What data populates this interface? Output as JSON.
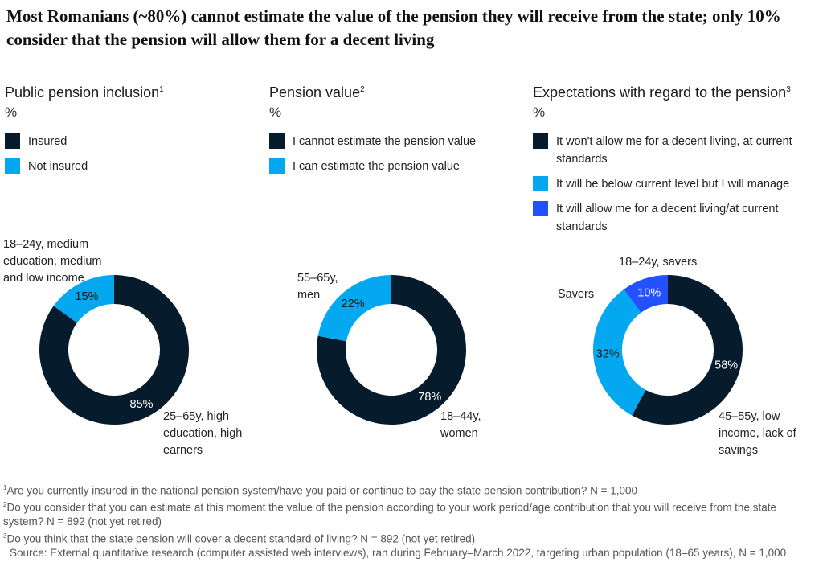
{
  "title": "Most Romanians (~80%) cannot estimate the value of the pension they will receive from the state; only 10% consider that the pension will allow them for a decent living",
  "colors": {
    "dark": "#061c2c",
    "cyan": "#04a8f0",
    "blue": "#2451ff"
  },
  "panels": [
    {
      "heading": "Public pension inclusion",
      "sup": "1",
      "unit": "%",
      "legend": [
        {
          "label": "Insured",
          "color": "#061c2c"
        },
        {
          "label": "Not insured",
          "color": "#04a8f0"
        }
      ],
      "annotations": [
        "18–24y, medium education, medium and low income",
        "25–65y, high education, high earners"
      ]
    },
    {
      "heading": "Pension value",
      "sup": "2",
      "unit": "%",
      "legend": [
        {
          "label": "I cannot estimate the pension value",
          "color": "#061c2c"
        },
        {
          "label": "I can estimate the pension value",
          "color": "#04a8f0"
        }
      ],
      "annotations": [
        "55–65y, men",
        "18–44y, women"
      ]
    },
    {
      "heading": "Expectations with regard to the pension",
      "sup": "3",
      "unit": "%",
      "legend": [
        {
          "label": "It won't allow me for a decent living, at current standards",
          "color": "#061c2c"
        },
        {
          "label": "It will be below current level but I will manage",
          "color": "#04a8f0"
        },
        {
          "label": "It will allow me for a decent living/at current standards",
          "color": "#2451ff"
        }
      ],
      "annotations": [
        "18–24y, savers",
        "Savers",
        "45–55y, low income, lack of savings"
      ]
    }
  ],
  "chart_data": [
    {
      "type": "pie",
      "title": "Public pension inclusion",
      "unit": "%",
      "slices": [
        {
          "label": "Insured",
          "value": 85,
          "display": "85%"
        },
        {
          "label": "Not insured",
          "value": 15,
          "display": "15%"
        }
      ]
    },
    {
      "type": "pie",
      "title": "Pension value",
      "unit": "%",
      "slices": [
        {
          "label": "I cannot estimate the pension value",
          "value": 78,
          "display": "78%"
        },
        {
          "label": "I can estimate the pension value",
          "value": 22,
          "display": "22%"
        }
      ]
    },
    {
      "type": "pie",
      "title": "Expectations with regard to the pension",
      "unit": "%",
      "slices": [
        {
          "label": "It won't allow me for a decent living, at current standards",
          "value": 58,
          "display": "58%"
        },
        {
          "label": "It will be below current level but I will manage",
          "value": 32,
          "display": "32%"
        },
        {
          "label": "It will allow me for a decent living/at current standards",
          "value": 10,
          "display": "10%"
        }
      ]
    }
  ],
  "footnotes": {
    "fn1_sup": "1",
    "fn1": "Are you currently insured in the national pension system/have you paid or continue to pay the state pension contribution? N = 1,000",
    "fn2_sup": "2",
    "fn2": "Do you consider that you can estimate at this moment the value of the pension according to your work period/age contribution that you will receive from the state system? N = 892 (not yet retired)",
    "fn3_sup": "3",
    "fn3": "Do you think that the state pension will cover a decent standard of living? N = 892 (not yet retired)",
    "source": "Source: External quantitative research (computer assisted web interviews), ran during February–March 2022, targeting urban population (18–65 years), N = 1,000"
  }
}
